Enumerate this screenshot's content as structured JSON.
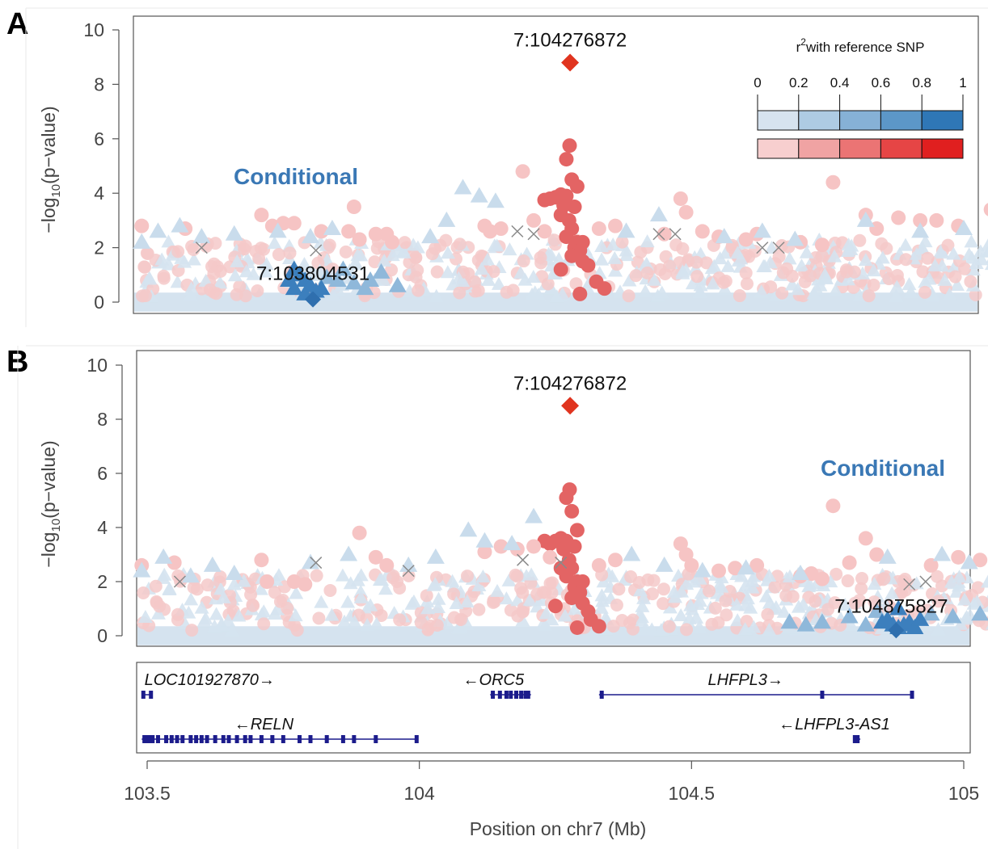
{
  "colors": {
    "lead": "#e0341f",
    "blue_ramp": [
      "#d6e3ef",
      "#aecbe3",
      "#86b1d6",
      "#5c97c8",
      "#2f77b6"
    ],
    "red_ramp": [
      "#f7cfcf",
      "#f0a3a3",
      "#eb7474",
      "#e64545",
      "#e01f1f"
    ],
    "conditional_text": "#3a78b5",
    "gene": "#1c1c8c",
    "background_blue": "#d5e3ef",
    "background_red": "#f5c9c9"
  },
  "legend": {
    "title_sup": "2",
    "title_rest": "with reference SNP",
    "ticks": [
      "0",
      "0.2",
      "0.4",
      "0.6",
      "0.8",
      "1"
    ]
  },
  "chart_data": [
    {
      "type": "scatter",
      "panel": "A",
      "xlim": [
        103.49,
        105.06
      ],
      "ylim": [
        0,
        10
      ],
      "yticks": [
        "0",
        "2",
        "4",
        "6",
        "8",
        "10"
      ],
      "ylabel_prefix": "−log",
      "ylabel_sub": "10",
      "ylabel_suffix": "(p−value)",
      "lead_snp": {
        "label": "7:104276872",
        "x": 104.276872,
        "y": 8.8
      },
      "conditional_snp": {
        "label": "7:103804531",
        "x": 103.804531,
        "y": 0.1
      },
      "annotation": "Conditional",
      "series": [
        {
          "marker": "circle",
          "r2_class": "red",
          "points": [
            [
              104.276,
              5.75
            ],
            [
              104.27,
              5.25
            ],
            [
              104.28,
              4.5
            ],
            [
              104.29,
              4.25
            ],
            [
              104.26,
              3.95
            ],
            [
              104.25,
              3.85
            ],
            [
              104.27,
              3.9
            ],
            [
              104.24,
              3.8
            ],
            [
              104.23,
              3.75
            ],
            [
              104.285,
              3.5
            ],
            [
              104.265,
              3.55
            ],
            [
              104.26,
              3.2
            ],
            [
              104.275,
              3.0
            ],
            [
              104.28,
              2.7
            ],
            [
              104.27,
              2.4
            ],
            [
              104.29,
              2.2
            ],
            [
              104.285,
              2.0
            ],
            [
              104.3,
              2.2
            ],
            [
              104.295,
              1.9
            ],
            [
              104.28,
              1.7
            ],
            [
              104.3,
              1.5
            ],
            [
              104.31,
              1.35
            ],
            [
              104.26,
              1.2
            ],
            [
              104.325,
              0.75
            ],
            [
              104.34,
              0.5
            ],
            [
              104.295,
              0.3
            ]
          ]
        },
        {
          "marker": "circle",
          "r2_class": "pink",
          "points": [
            [
              103.49,
              2.8
            ],
            [
              103.57,
              2.7
            ],
            [
              103.71,
              3.2
            ],
            [
              103.73,
              2.8
            ],
            [
              103.75,
              2.9
            ],
            [
              103.77,
              2.9
            ],
            [
              103.82,
              2.6
            ],
            [
              103.88,
              3.5
            ],
            [
              103.87,
              2.6
            ],
            [
              103.89,
              2.3
            ],
            [
              103.92,
              2.5
            ],
            [
              103.94,
              2.5
            ],
            [
              103.95,
              2.2
            ],
            [
              104.12,
              2.8
            ],
            [
              104.13,
              2.6
            ],
            [
              104.15,
              2.7
            ],
            [
              104.19,
              4.8
            ],
            [
              104.21,
              3.0
            ],
            [
              104.23,
              2.6
            ],
            [
              104.33,
              2.7
            ],
            [
              104.36,
              2.8
            ],
            [
              104.45,
              2.5
            ],
            [
              104.48,
              3.8
            ],
            [
              104.49,
              3.3
            ],
            [
              104.52,
              2.6
            ],
            [
              104.55,
              2.4
            ],
            [
              104.6,
              2.3
            ],
            [
              104.62,
              2.5
            ],
            [
              104.76,
              4.4
            ],
            [
              104.82,
              3.2
            ],
            [
              104.84,
              2.7
            ],
            [
              104.88,
              3.1
            ],
            [
              104.92,
              3.0
            ],
            [
              104.95,
              3.0
            ],
            [
              104.99,
              2.8
            ],
            [
              105.05,
              3.4
            ],
            [
              104.7,
              2.2
            ],
            [
              104.74,
              2.1
            ]
          ]
        },
        {
          "marker": "triangle",
          "r2_class": "lightblue",
          "points": [
            [
              103.49,
              2.2
            ],
            [
              103.52,
              2.6
            ],
            [
              103.56,
              2.8
            ],
            [
              103.6,
              2.4
            ],
            [
              103.66,
              2.5
            ],
            [
              103.74,
              2.6
            ],
            [
              103.8,
              2.4
            ],
            [
              103.84,
              2.7
            ],
            [
              104.08,
              4.2
            ],
            [
              104.11,
              3.9
            ],
            [
              104.14,
              3.7
            ],
            [
              104.05,
              3.0
            ],
            [
              104.02,
              2.4
            ],
            [
              104.44,
              3.2
            ],
            [
              104.38,
              2.6
            ],
            [
              104.56,
              2.4
            ],
            [
              104.63,
              2.6
            ],
            [
              104.69,
              2.3
            ],
            [
              104.82,
              3.0
            ],
            [
              104.92,
              2.6
            ],
            [
              105.0,
              2.7
            ]
          ]
        },
        {
          "marker": "triangle",
          "r2_class": "midblue",
          "points": [
            [
              103.85,
              0.8
            ],
            [
              103.88,
              0.7
            ],
            [
              103.91,
              0.8
            ],
            [
              103.93,
              1.1
            ],
            [
              103.96,
              0.6
            ],
            [
              103.83,
              0.9
            ],
            [
              103.86,
              1.2
            ],
            [
              103.9,
              0.5
            ]
          ]
        },
        {
          "marker": "triangle",
          "r2_class": "darkblue",
          "points": [
            [
              103.77,
              1.2
            ],
            [
              103.78,
              1.0
            ],
            [
              103.79,
              0.8
            ],
            [
              103.8,
              0.6
            ],
            [
              103.81,
              0.4
            ],
            [
              103.79,
              0.3
            ],
            [
              103.77,
              0.5
            ],
            [
              103.76,
              0.8
            ],
            [
              103.82,
              0.5
            ]
          ]
        },
        {
          "marker": "cross",
          "r2_class": "none",
          "points": [
            [
              103.6,
              2.0
            ],
            [
              103.81,
              1.9
            ],
            [
              104.18,
              2.6
            ],
            [
              104.21,
              2.5
            ],
            [
              104.44,
              2.5
            ],
            [
              104.47,
              2.5
            ],
            [
              104.63,
              2.0
            ],
            [
              104.66,
              2.0
            ]
          ]
        }
      ]
    },
    {
      "type": "scatter",
      "panel": "B",
      "xlim": [
        103.49,
        105.06
      ],
      "ylim": [
        0,
        10
      ],
      "yticks": [
        "0",
        "2",
        "4",
        "6",
        "8",
        "10"
      ],
      "ylabel_prefix": "−log",
      "ylabel_sub": "10",
      "ylabel_suffix": "(p−value)",
      "lead_snp": {
        "label": "7:104276872",
        "x": 104.276872,
        "y": 8.5
      },
      "conditional_snp": {
        "label": "7:104875827",
        "x": 104.875827,
        "y": 0.2
      },
      "annotation": "Conditional",
      "series": [
        {
          "marker": "circle",
          "r2_class": "red",
          "points": [
            [
              104.276,
              5.4
            ],
            [
              104.27,
              5.1
            ],
            [
              104.28,
              4.6
            ],
            [
              104.29,
              3.9
            ],
            [
              104.26,
              3.6
            ],
            [
              104.25,
              3.5
            ],
            [
              104.27,
              3.5
            ],
            [
              104.24,
              3.4
            ],
            [
              104.23,
              3.5
            ],
            [
              104.285,
              3.3
            ],
            [
              104.265,
              3.2
            ],
            [
              104.26,
              2.5
            ],
            [
              104.275,
              2.8
            ],
            [
              104.28,
              2.5
            ],
            [
              104.27,
              2.2
            ],
            [
              104.29,
              2.0
            ],
            [
              104.285,
              1.8
            ],
            [
              104.3,
              2.0
            ],
            [
              104.295,
              1.6
            ],
            [
              104.28,
              1.4
            ],
            [
              104.3,
              1.2
            ],
            [
              104.31,
              0.9
            ],
            [
              104.25,
              1.1
            ],
            [
              104.315,
              0.6
            ],
            [
              104.33,
              0.35
            ],
            [
              104.29,
              0.3
            ]
          ]
        },
        {
          "marker": "circle",
          "r2_class": "pink",
          "points": [
            [
              103.49,
              2.6
            ],
            [
              103.55,
              2.7
            ],
            [
              103.71,
              2.8
            ],
            [
              103.72,
              2.0
            ],
            [
              103.77,
              2.0
            ],
            [
              103.79,
              1.9
            ],
            [
              103.89,
              3.8
            ],
            [
              103.92,
              2.9
            ],
            [
              103.94,
              2.6
            ],
            [
              104.12,
              3.1
            ],
            [
              104.15,
              3.3
            ],
            [
              104.18,
              3.2
            ],
            [
              104.21,
              3.3
            ],
            [
              104.24,
              2.9
            ],
            [
              104.33,
              2.6
            ],
            [
              104.36,
              2.8
            ],
            [
              104.48,
              3.4
            ],
            [
              104.49,
              3.0
            ],
            [
              104.5,
              2.6
            ],
            [
              104.55,
              2.4
            ],
            [
              104.58,
              2.5
            ],
            [
              104.62,
              2.6
            ],
            [
              104.72,
              2.3
            ],
            [
              104.76,
              4.8
            ],
            [
              104.79,
              2.7
            ],
            [
              104.82,
              3.6
            ],
            [
              104.84,
              3.0
            ],
            [
              104.94,
              2.6
            ],
            [
              104.99,
              2.9
            ],
            [
              105.03,
              2.8
            ],
            [
              104.7,
              2.2
            ],
            [
              104.74,
              2.1
            ]
          ]
        },
        {
          "marker": "triangle",
          "r2_class": "lightblue",
          "points": [
            [
              103.49,
              2.4
            ],
            [
              103.53,
              2.9
            ],
            [
              103.58,
              2.2
            ],
            [
              103.62,
              2.6
            ],
            [
              103.66,
              2.3
            ],
            [
              103.8,
              2.7
            ],
            [
              103.87,
              3.0
            ],
            [
              103.98,
              2.6
            ],
            [
              104.03,
              2.9
            ],
            [
              104.09,
              3.9
            ],
            [
              104.12,
              3.5
            ],
            [
              104.17,
              3.4
            ],
            [
              104.21,
              4.4
            ],
            [
              104.39,
              3.0
            ],
            [
              104.45,
              2.6
            ],
            [
              104.52,
              2.4
            ],
            [
              104.6,
              2.5
            ],
            [
              104.7,
              2.3
            ],
            [
              104.86,
              2.9
            ],
            [
              104.96,
              3.0
            ],
            [
              105.01,
              2.7
            ]
          ]
        },
        {
          "marker": "triangle",
          "r2_class": "midblue",
          "points": [
            [
              104.68,
              0.5
            ],
            [
              104.71,
              0.4
            ],
            [
              104.74,
              0.5
            ],
            [
              104.79,
              0.7
            ],
            [
              104.82,
              0.4
            ],
            [
              104.84,
              0.9
            ],
            [
              104.94,
              0.8
            ],
            [
              104.98,
              0.7
            ],
            [
              105.03,
              0.8
            ]
          ]
        },
        {
          "marker": "triangle",
          "r2_class": "darkblue",
          "points": [
            [
              104.86,
              0.6
            ],
            [
              104.87,
              0.4
            ],
            [
              104.88,
              0.3
            ],
            [
              104.89,
              0.4
            ],
            [
              104.9,
              0.5
            ],
            [
              104.88,
              1.0
            ],
            [
              104.85,
              0.5
            ],
            [
              104.91,
              0.3
            ],
            [
              104.92,
              0.6
            ]
          ]
        },
        {
          "marker": "cross",
          "r2_class": "none",
          "points": [
            [
              103.56,
              2.0
            ],
            [
              103.81,
              2.7
            ],
            [
              103.98,
              2.4
            ],
            [
              104.19,
              2.8
            ],
            [
              104.26,
              2.7
            ],
            [
              104.9,
              1.9
            ],
            [
              104.93,
              2.0
            ]
          ]
        }
      ]
    }
  ],
  "genes_panel": {
    "genes": [
      {
        "name": "LOC101927870→",
        "start": 103.49,
        "end": 103.51,
        "row": 1,
        "exons": [
          103.493,
          103.507
        ],
        "label_x": 103.495
      },
      {
        "name": "←ORC5",
        "start": 104.13,
        "end": 104.205,
        "row": 1,
        "exons": [
          104.135,
          104.148,
          104.16,
          104.168,
          104.178,
          104.187,
          104.195,
          104.2
        ],
        "label_x": 104.08
      },
      {
        "name": "LHFPL3→",
        "start": 104.33,
        "end": 104.905,
        "row": 1,
        "exons": [
          104.335,
          104.74,
          104.905
        ],
        "label_x": 104.53
      },
      {
        "name": "←RELN",
        "start": 103.49,
        "end": 103.995,
        "row": 2,
        "exons": [
          103.495,
          103.5,
          103.505,
          103.51,
          103.52,
          103.535,
          103.545,
          103.555,
          103.565,
          103.58,
          103.59,
          103.6,
          103.61,
          103.625,
          103.64,
          103.65,
          103.665,
          103.68,
          103.69,
          103.71,
          103.73,
          103.75,
          103.78,
          103.8,
          103.83,
          103.86,
          103.88,
          103.92,
          103.995
        ],
        "label_x": 103.66
      },
      {
        "name": "←LHFPL3-AS1",
        "start": 104.8,
        "end": 104.81,
        "row": 2,
        "exons": [
          104.8,
          104.805
        ],
        "label_x": 104.66
      }
    ]
  },
  "x_axis": {
    "ticks": [
      "103.5",
      "104",
      "104.5",
      "105"
    ],
    "tick_values": [
      103.5,
      104,
      104.5,
      105
    ],
    "title": "Position on chr7 (Mb)"
  }
}
